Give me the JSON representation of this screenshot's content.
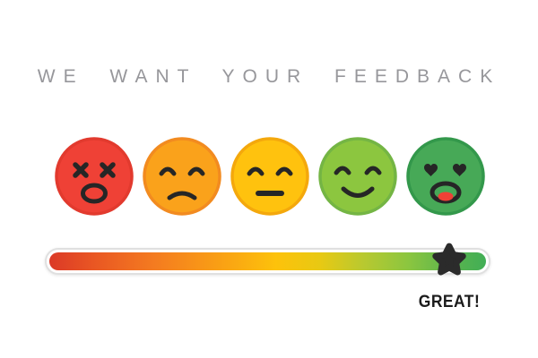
{
  "title": "WE WANT YOUR FEEDBACK",
  "rating": {
    "label": "GREAT!",
    "star_position_pct": 91
  },
  "colors": {
    "title_text": "#97979B",
    "label_text": "#1C1C1C",
    "star": "#2B2B2B",
    "feature_stroke": "#262626",
    "tongue": "#EF4136",
    "track_border": "#E0E0E0"
  },
  "faces": [
    {
      "name": "dead-face",
      "fill": "#EF4136",
      "ring": "#E23A2E"
    },
    {
      "name": "sad-face",
      "fill": "#FAA21B",
      "ring": "#F28B20"
    },
    {
      "name": "neutral-face",
      "fill": "#FFC20E",
      "ring": "#F4A80C"
    },
    {
      "name": "happy-face",
      "fill": "#8CC63F",
      "ring": "#74B544"
    },
    {
      "name": "love-face",
      "fill": "#47A957",
      "ring": "#33984B"
    }
  ],
  "slider": {
    "gradient_stops": [
      "#DB3927 0%",
      "#E95623 10%",
      "#F47B20 24%",
      "#F99D15 38%",
      "#FDC20B 52%",
      "#E8C913 62%",
      "#B8C930 72%",
      "#8CC63F 82%",
      "#5BB54E 92%",
      "#41AE55 100%"
    ]
  }
}
